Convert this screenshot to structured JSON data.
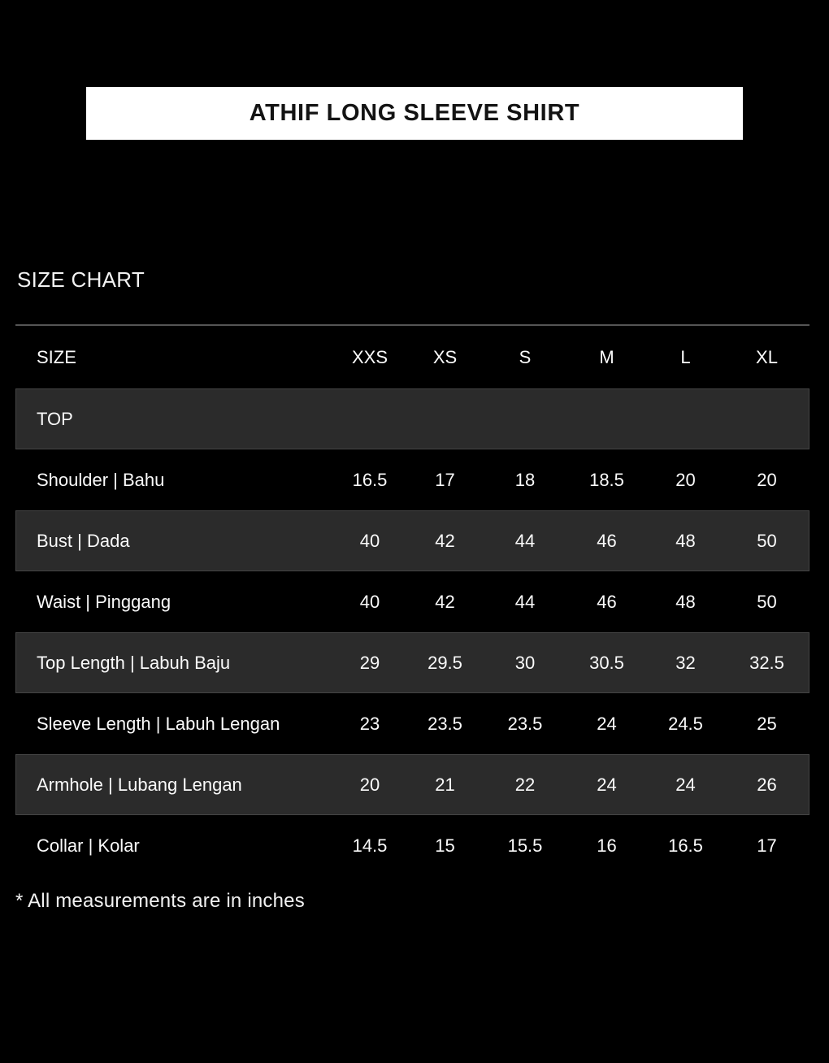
{
  "page": {
    "title_banner": {
      "text": "ATHIF LONG SLEEVE SHIRT",
      "bg_color": "#ffffff",
      "text_color": "#131313"
    },
    "background_color": "#000000",
    "shaded_row_color": "#2b2b2b",
    "divider_color": "#555555",
    "text_color": "#f5f5f5"
  },
  "chart_data": {
    "type": "table",
    "title": "SIZE CHART",
    "columns": [
      "SIZE",
      "XXS",
      "XS",
      "S",
      "M",
      "L",
      "XL"
    ],
    "section": "TOP",
    "rows": [
      {
        "label": "Shoulder | Bahu",
        "values": [
          "16.5",
          "17",
          "18",
          "18.5",
          "20",
          "20"
        ]
      },
      {
        "label": "Bust | Dada",
        "values": [
          "40",
          "42",
          "44",
          "46",
          "48",
          "50"
        ]
      },
      {
        "label": "Waist | Pinggang",
        "values": [
          "40",
          "42",
          "44",
          "46",
          "48",
          "50"
        ]
      },
      {
        "label": "Top Length | Labuh Baju",
        "values": [
          "29",
          "29.5",
          "30",
          "30.5",
          "32",
          "32.5"
        ]
      },
      {
        "label": "Sleeve Length | Labuh Lengan",
        "values": [
          "23",
          "23.5",
          "23.5",
          "24",
          "24.5",
          "25"
        ]
      },
      {
        "label": "Armhole | Lubang Lengan",
        "values": [
          "20",
          "21",
          "22",
          "24",
          "24",
          "26"
        ]
      },
      {
        "label": "Collar | Kolar",
        "values": [
          "14.5",
          "15",
          "15.5",
          "16",
          "16.5",
          "17"
        ]
      }
    ],
    "footnote": "* All measurements are in inches",
    "layout": {
      "shaded_rows": [
        "TOP",
        "Bust | Dada",
        "Top Length | Labuh Baju",
        "Armhole | Lubang Lengan"
      ],
      "grid": "off"
    }
  }
}
